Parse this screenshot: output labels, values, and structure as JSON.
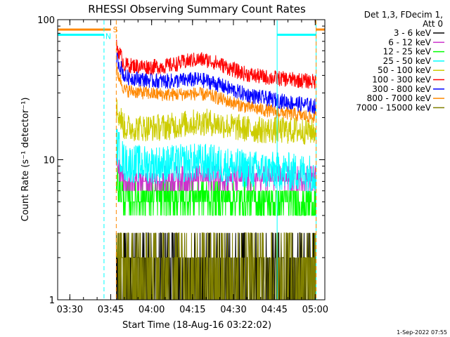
{
  "chart_data": {
    "type": "line",
    "title": "RHESSI Observing Summary Count Rates",
    "xlabel": "Start Time (18-Aug-16 03:22:02)",
    "ylabel": "Count Rate (s⁻¹ detector⁻¹)",
    "yscale": "log",
    "ylim": [
      1,
      100
    ],
    "xlim_minutes": [
      3.5,
      101.5
    ],
    "x_ticks": [
      {
        "label": "03:30",
        "minutes": 7.97
      },
      {
        "label": "03:45",
        "minutes": 22.97
      },
      {
        "label": "04:00",
        "minutes": 37.97
      },
      {
        "label": "04:15",
        "minutes": 52.97
      },
      {
        "label": "04:30",
        "minutes": 67.97
      },
      {
        "label": "04:45",
        "minutes": 82.97
      },
      {
        "label": "05:00",
        "minutes": 97.97
      }
    ],
    "y_ticks": [
      {
        "label": "1",
        "value": 1
      },
      {
        "label": "10",
        "value": 10
      },
      {
        "label": "100",
        "value": 100
      }
    ],
    "legend_header": [
      "Det 1,3, FDecim 1,",
      "Att 0"
    ],
    "legend_placement": "right",
    "series": [
      {
        "name": "3 - 6 keV",
        "color": "#000000",
        "level_start": 1.5,
        "level_end": 1.6,
        "bump": 0.0,
        "noise": 0.35,
        "quantized": true
      },
      {
        "name": "6 - 12 keV",
        "color": "#cc33cc",
        "level_start": 7.0,
        "level_end": 7.5,
        "bump": 0.05,
        "noise": 0.12,
        "quantized": true
      },
      {
        "name": "12 - 25 keV",
        "color": "#00ff00",
        "level_start": 5.5,
        "level_end": 5.0,
        "bump": 0.05,
        "noise": 0.18,
        "quantized": true
      },
      {
        "name": "25 - 50 keV",
        "color": "#00ffff",
        "level_start": 9.5,
        "level_end": 8.0,
        "bump": 0.08,
        "noise": 0.1,
        "quantized": false
      },
      {
        "name": "50 - 100 keV",
        "color": "#cccc00",
        "level_start": 17.0,
        "level_end": 16.0,
        "bump": 0.12,
        "noise": 0.07,
        "quantized": false
      },
      {
        "name": "100 - 300 keV",
        "color": "#ff0000",
        "level_start": 48.0,
        "level_end": 36.0,
        "bump": 0.22,
        "noise": 0.04,
        "quantized": false
      },
      {
        "name": "300 - 800 keV",
        "color": "#0000ff",
        "level_start": 40.0,
        "level_end": 24.0,
        "bump": 0.15,
        "noise": 0.04,
        "quantized": false
      },
      {
        "name": "800 - 7000 keV",
        "color": "#ff8800",
        "level_start": 32.0,
        "level_end": 20.0,
        "bump": 0.12,
        "noise": 0.035,
        "quantized": false
      },
      {
        "name": "7000 - 15000 keV",
        "color": "#808000",
        "level_start": 1.4,
        "level_end": 1.4,
        "bump": 0.0,
        "noise": 0.3,
        "quantized": true
      }
    ],
    "data_start_minute": 25.0,
    "data_end_minute": 98.3,
    "bump_center_minute": 57.0,
    "night_interval": {
      "color": "#00ffff",
      "minutes": [
        [
          3.5,
          20.5
        ],
        [
          84.0,
          98.3
        ]
      ],
      "value": 78
    },
    "saa_interval": {
      "label": "S",
      "color": "#ff8800",
      "minutes": [
        [
          3.5,
          23.0
        ],
        [
          98.3,
          101.5
        ]
      ],
      "value": 85
    },
    "night_label": "N",
    "event_lines": [
      {
        "minute": 20.5,
        "color": "#00ffff",
        "style": "dashed"
      },
      {
        "minute": 25.0,
        "color": "#ff8800",
        "style": "dashed"
      },
      {
        "minute": 84.0,
        "color": "#00ffff",
        "style": "solid"
      },
      {
        "minute": 98.3,
        "color": "#00ffff",
        "style": "solid"
      },
      {
        "minute": 98.3,
        "color": "#ff8800",
        "style": "dashed"
      }
    ]
  },
  "footer_date": "1-Sep-2022 07:55"
}
